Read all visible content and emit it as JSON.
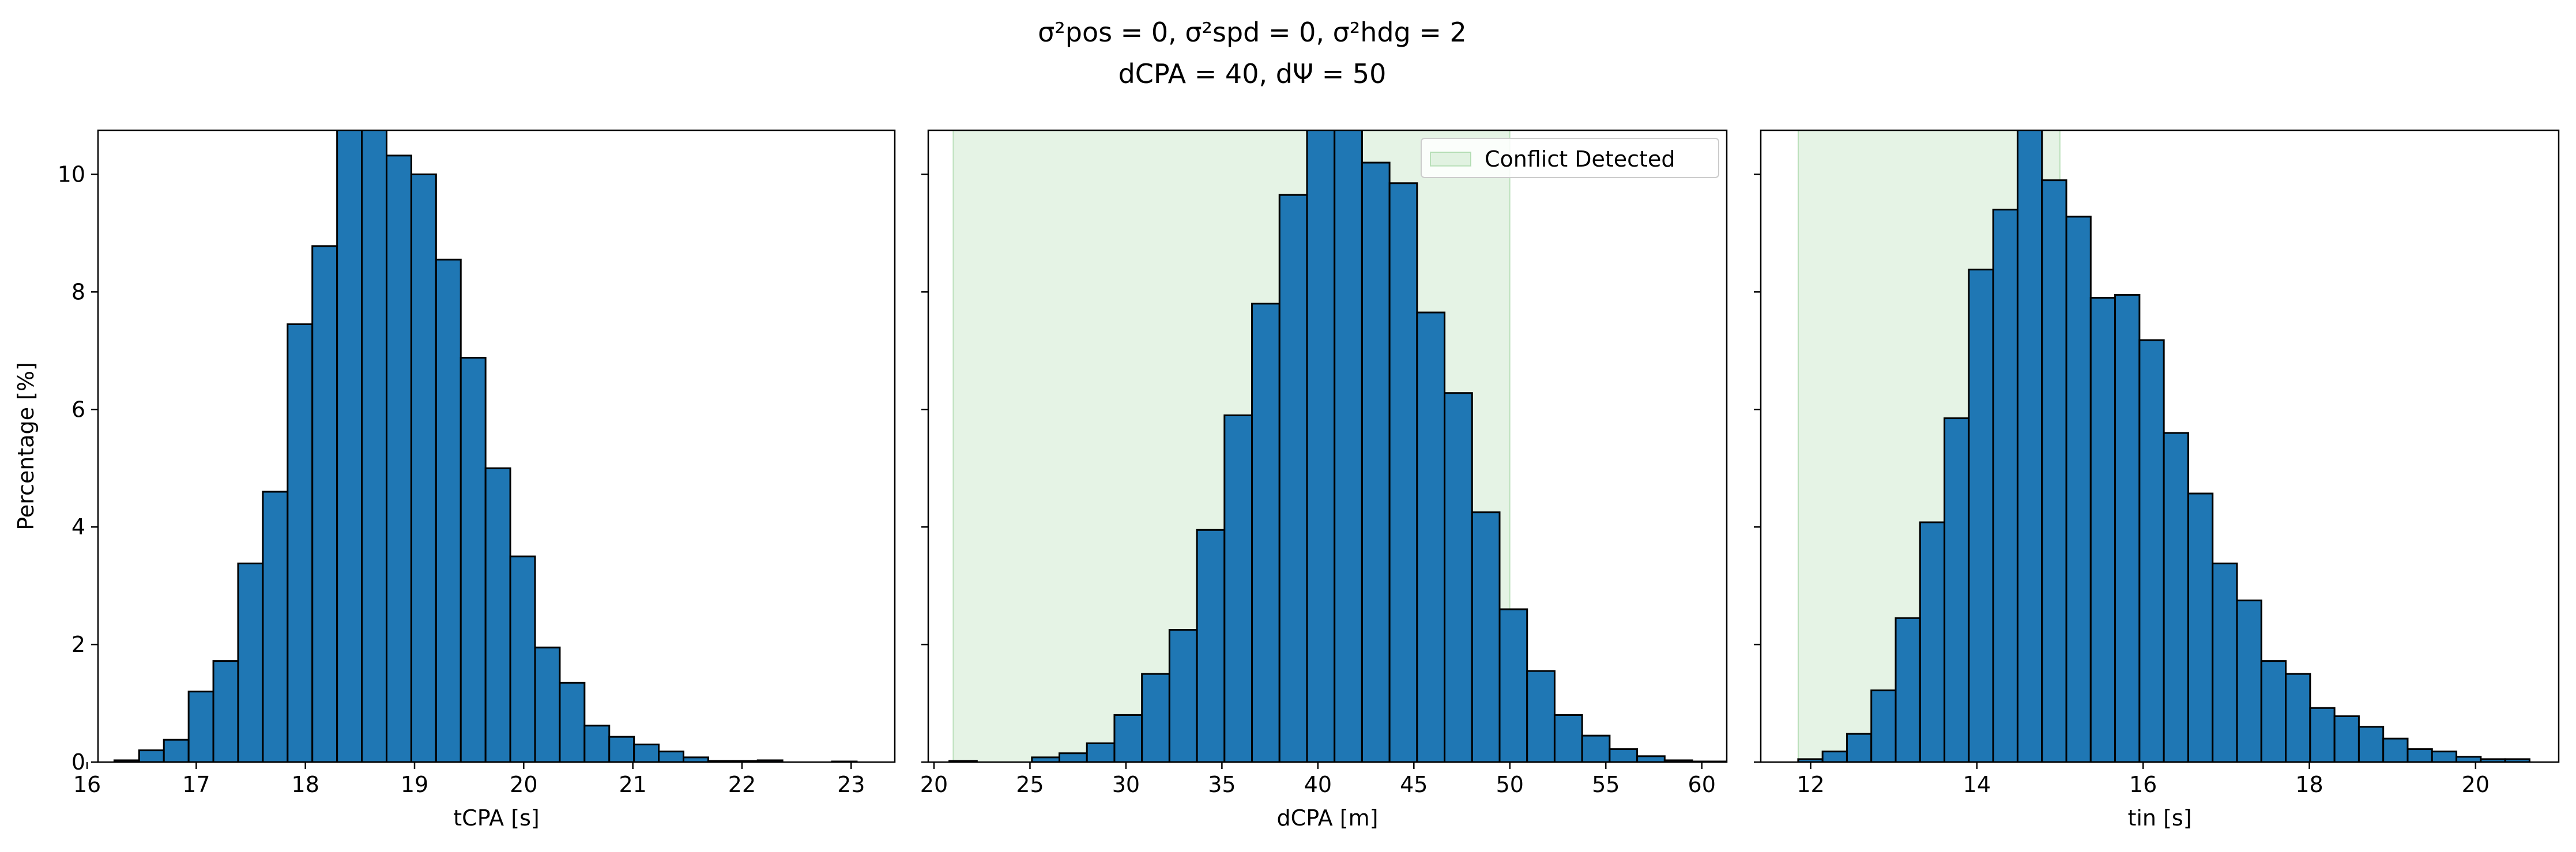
{
  "figure": {
    "title_line1": "σ²pos = 0, σ²spd = 0, σ²hdg = 2",
    "title_line2": "dCPA = 40, dΨ = 50"
  },
  "chart_data": [
    {
      "type": "bar",
      "subtype": "histogram",
      "xlabel": "tCPA [s]",
      "ylabel": "Percentage [%]",
      "xlim": [
        16.1,
        23.4
      ],
      "ylim": [
        0,
        10.75
      ],
      "xticks": [
        16,
        17,
        18,
        19,
        20,
        21,
        22,
        23
      ],
      "yticks": [
        0,
        2,
        4,
        6,
        8,
        10
      ],
      "bar_color": "#1f77b4",
      "bin_start": 16.25,
      "bin_width": 0.2267,
      "values": [
        0.03,
        0.2,
        0.38,
        1.2,
        1.72,
        3.38,
        4.6,
        7.45,
        8.78,
        10.9,
        10.8,
        10.32,
        10.0,
        8.55,
        6.88,
        5.0,
        3.5,
        1.95,
        1.35,
        0.62,
        0.43,
        0.3,
        0.18,
        0.08,
        0.02,
        0.02,
        0.03,
        0.0,
        0.0,
        0.01
      ],
      "grid": false
    },
    {
      "type": "bar",
      "subtype": "histogram",
      "xlabel": "dCPA [m]",
      "ylabel": "",
      "xlim": [
        19.7,
        61.3
      ],
      "ylim": [
        0,
        10.75
      ],
      "xticks": [
        20,
        25,
        30,
        35,
        40,
        45,
        50,
        55,
        60
      ],
      "yticks": [
        0,
        2,
        4,
        6,
        8,
        10
      ],
      "bar_color": "#1f77b4",
      "bin_start": 20.8,
      "bin_width": 1.4333,
      "values": [
        0.02,
        0.0,
        0.0,
        0.08,
        0.15,
        0.32,
        0.8,
        1.5,
        2.25,
        3.95,
        5.9,
        7.8,
        9.65,
        11.0,
        11.5,
        10.2,
        9.85,
        7.65,
        6.28,
        4.25,
        2.6,
        1.55,
        0.8,
        0.45,
        0.22,
        0.1,
        0.03,
        0.01,
        0.01,
        0.02
      ],
      "shaded_region": {
        "x0": 21.0,
        "x1": 50.0,
        "label": "Conflict Detected",
        "color": "#2ca02c"
      },
      "legend": "top-right",
      "grid": false
    },
    {
      "type": "bar",
      "subtype": "histogram",
      "xlabel": "tin [s]",
      "ylabel": "",
      "xlim": [
        11.4,
        21.0
      ],
      "ylim": [
        0,
        10.75
      ],
      "xticks": [
        12,
        14,
        16,
        18,
        20
      ],
      "yticks": [
        0,
        2,
        4,
        6,
        8,
        10
      ],
      "bar_color": "#1f77b4",
      "bin_start": 11.85,
      "bin_width": 0.2933,
      "values": [
        0.05,
        0.18,
        0.48,
        1.22,
        2.45,
        4.08,
        5.85,
        8.38,
        9.4,
        10.85,
        9.9,
        9.28,
        7.9,
        7.95,
        7.18,
        5.6,
        4.57,
        3.38,
        2.75,
        1.72,
        1.5,
        0.92,
        0.78,
        0.6,
        0.4,
        0.22,
        0.18,
        0.09,
        0.05,
        0.05
      ],
      "shaded_region": {
        "x0": 11.85,
        "x1": 15.0,
        "label": "",
        "color": "#2ca02c"
      },
      "grid": false
    }
  ]
}
